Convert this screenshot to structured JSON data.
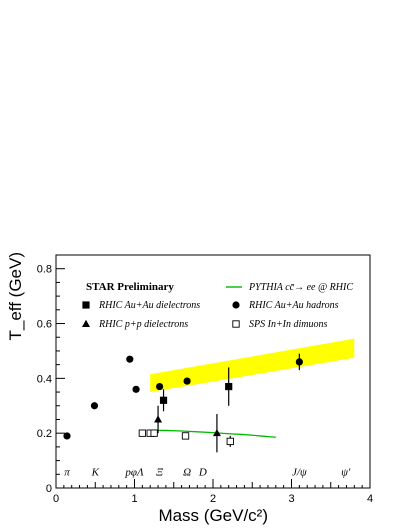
{
  "chart_data": {
    "type": "scatter",
    "xlabel": "Mass (GeV/c²)",
    "ylabel": "T_eff (GeV)",
    "xlim": [
      0,
      4
    ],
    "ylim": [
      0,
      0.85
    ],
    "x_ticks": [
      "0",
      "1",
      "2",
      "3",
      "4"
    ],
    "y_ticks": [
      "0",
      "0.2",
      "0.4",
      "0.6",
      "0.8"
    ],
    "title": "STAR Preliminary",
    "legend_position": "top",
    "legend": [
      {
        "label": "RHIC Au+Au dielectrons",
        "marker": "square-filled"
      },
      {
        "label": "RHIC p+p dielectrons",
        "marker": "triangle-filled"
      },
      {
        "label": "PYTHIA cc̄→ ee @ RHIC",
        "marker": "line-green"
      },
      {
        "label": "RHIC Au+Au hadrons",
        "marker": "circle-filled"
      },
      {
        "label": "SPS In+In dimuons",
        "marker": "square-open"
      }
    ],
    "series": [
      {
        "name": "RHIC Au+Au hadrons",
        "marker": "circle-filled",
        "points": [
          {
            "x": 0.14,
            "y": 0.19
          },
          {
            "x": 0.49,
            "y": 0.3
          },
          {
            "x": 0.94,
            "y": 0.47
          },
          {
            "x": 1.02,
            "y": 0.36
          },
          {
            "x": 1.32,
            "y": 0.37
          },
          {
            "x": 1.67,
            "y": 0.39
          },
          {
            "x": 3.1,
            "y": 0.46,
            "err": 0.03
          }
        ]
      },
      {
        "name": "RHIC Au+Au dielectrons",
        "marker": "square-filled",
        "points": [
          {
            "x": 1.37,
            "y": 0.32,
            "err": 0.04
          },
          {
            "x": 2.2,
            "y": 0.37,
            "err": 0.07
          }
        ]
      },
      {
        "name": "RHIC p+p dielectrons",
        "marker": "triangle-filled",
        "points": [
          {
            "x": 1.3,
            "y": 0.25,
            "err": 0.05
          },
          {
            "x": 2.05,
            "y": 0.2,
            "err": 0.07
          }
        ]
      },
      {
        "name": "SPS In+In dimuons",
        "marker": "square-open",
        "points": [
          {
            "x": 1.1,
            "y": 0.2
          },
          {
            "x": 1.2,
            "y": 0.2
          },
          {
            "x": 1.25,
            "y": 0.2
          },
          {
            "x": 1.65,
            "y": 0.19
          },
          {
            "x": 2.22,
            "y": 0.17,
            "err": 0.02
          }
        ]
      }
    ],
    "pythia_line": {
      "name": "PYTHIA cc̄→ ee @ RHIC",
      "color": "#00bb00",
      "x": [
        1.2,
        1.4,
        1.6,
        1.8,
        2.0,
        2.2,
        2.4,
        2.6,
        2.8
      ],
      "y": [
        0.21,
        0.21,
        0.208,
        0.205,
        0.202,
        0.198,
        0.195,
        0.19,
        0.185
      ]
    },
    "band": {
      "color": "#ffff00",
      "x": [
        1.2,
        3.8
      ],
      "y_low": [
        0.35,
        0.475
      ],
      "y_high": [
        0.415,
        0.545
      ]
    },
    "particles": [
      {
        "label": "π",
        "x": 0.14
      },
      {
        "label": "K",
        "x": 0.5
      },
      {
        "label": "pφΛ",
        "x": 1.0
      },
      {
        "label": "Ξ",
        "x": 1.32
      },
      {
        "label": "Ω",
        "x": 1.67
      },
      {
        "label": "D",
        "x": 1.87
      },
      {
        "label": "J/ψ",
        "x": 3.1
      },
      {
        "label": "ψ'",
        "x": 3.69
      }
    ]
  }
}
